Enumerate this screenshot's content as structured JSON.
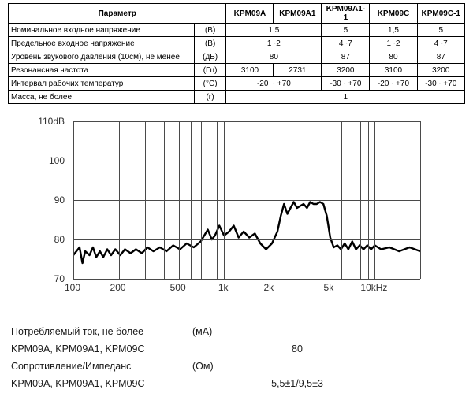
{
  "table": {
    "header": {
      "param": "Параметр",
      "models": [
        "KPM09A",
        "KPM09A1",
        "KPM09A1-1",
        "KPM09C",
        "KPM09C-1"
      ]
    },
    "rows": [
      {
        "param": "Номинальное входное напряжение",
        "unit": "(В)",
        "cells": [
          {
            "span": 2,
            "v": "1,5"
          },
          {
            "span": 1,
            "v": "5"
          },
          {
            "span": 1,
            "v": "1,5"
          },
          {
            "span": 1,
            "v": "5"
          }
        ]
      },
      {
        "param": "Предельное входное напряжение",
        "unit": "(В)",
        "cells": [
          {
            "span": 2,
            "v": "1~2"
          },
          {
            "span": 1,
            "v": "4~7"
          },
          {
            "span": 1,
            "v": "1~2"
          },
          {
            "span": 1,
            "v": "4~7"
          }
        ]
      },
      {
        "param": "Уровень звукового давления (10см), не менее",
        "unit": "(дБ)",
        "cells": [
          {
            "span": 2,
            "v": "80"
          },
          {
            "span": 1,
            "v": "87"
          },
          {
            "span": 1,
            "v": "80"
          },
          {
            "span": 1,
            "v": "87"
          }
        ]
      },
      {
        "param": "Резонансная частота",
        "unit": "(Гц)",
        "cells": [
          {
            "span": 1,
            "v": "3100"
          },
          {
            "span": 1,
            "v": "2731"
          },
          {
            "span": 1,
            "v": "3200"
          },
          {
            "span": 1,
            "v": "3100"
          },
          {
            "span": 1,
            "v": "3200"
          }
        ]
      },
      {
        "param": "Интервал рабочих температур",
        "unit": "(°С)",
        "cells": [
          {
            "span": 2,
            "v": "-20 ~ +70"
          },
          {
            "span": 1,
            "v": "-30~ +70"
          },
          {
            "span": 1,
            "v": "-20~ +70"
          },
          {
            "span": 1,
            "v": "-30~ +70"
          }
        ]
      },
      {
        "param": "Масса, не более",
        "unit": "(г)",
        "cells": [
          {
            "span": 5,
            "v": "1"
          }
        ]
      }
    ]
  },
  "chart": {
    "type": "line-spectrum-log-x",
    "ylim": [
      70,
      110
    ],
    "y_unit": "dB",
    "ylabel_top": "110dB",
    "yticks": [
      70,
      80,
      90,
      100,
      110
    ],
    "ytick_labels": [
      "70",
      "80",
      "90",
      "100",
      "110dB"
    ],
    "x_log_base": 10,
    "xlim": [
      100,
      20000
    ],
    "xticks": [
      100,
      200,
      500,
      1000,
      2000,
      5000,
      10000
    ],
    "xtick_labels": [
      "100",
      "200",
      "500",
      "1k",
      "2k",
      "5k",
      "10kHz"
    ],
    "x_gridlines": [
      100,
      200,
      300,
      400,
      500,
      600,
      700,
      800,
      900,
      1000,
      2000,
      3000,
      4000,
      5000,
      6000,
      7000,
      8000,
      9000,
      10000,
      20000
    ],
    "line_color": "#000000",
    "line_width": 2.4,
    "grid_color": "#4a4a4a",
    "background_color": "#ffffff",
    "label_fontsize": 12,
    "points": [
      [
        100,
        76
      ],
      [
        110,
        78
      ],
      [
        115,
        74
      ],
      [
        120,
        77
      ],
      [
        128,
        76
      ],
      [
        135,
        78
      ],
      [
        142,
        75.5
      ],
      [
        150,
        77
      ],
      [
        158,
        75.5
      ],
      [
        168,
        77.5
      ],
      [
        178,
        76
      ],
      [
        190,
        77.5
      ],
      [
        205,
        76
      ],
      [
        220,
        77.5
      ],
      [
        240,
        76.5
      ],
      [
        260,
        77.5
      ],
      [
        285,
        76.5
      ],
      [
        310,
        78
      ],
      [
        340,
        77
      ],
      [
        375,
        78
      ],
      [
        415,
        77
      ],
      [
        460,
        78.5
      ],
      [
        510,
        77.5
      ],
      [
        565,
        79
      ],
      [
        630,
        78
      ],
      [
        700,
        79.5
      ],
      [
        780,
        82.5
      ],
      [
        830,
        80
      ],
      [
        870,
        81
      ],
      [
        930,
        83.5
      ],
      [
        1000,
        81
      ],
      [
        1080,
        82
      ],
      [
        1160,
        83.5
      ],
      [
        1250,
        80.5
      ],
      [
        1350,
        82
      ],
      [
        1470,
        80.5
      ],
      [
        1600,
        81.5
      ],
      [
        1740,
        79
      ],
      [
        1900,
        77.5
      ],
      [
        2080,
        79
      ],
      [
        2260,
        82
      ],
      [
        2380,
        86
      ],
      [
        2500,
        89
      ],
      [
        2630,
        86.5
      ],
      [
        2760,
        88
      ],
      [
        2900,
        89.5
      ],
      [
        3050,
        88
      ],
      [
        3200,
        88.5
      ],
      [
        3370,
        89
      ],
      [
        3550,
        88
      ],
      [
        3730,
        89.5
      ],
      [
        3920,
        89
      ],
      [
        4120,
        89
      ],
      [
        4330,
        89.5
      ],
      [
        4560,
        89
      ],
      [
        4800,
        86
      ],
      [
        5060,
        80.5
      ],
      [
        5340,
        78
      ],
      [
        5640,
        78.5
      ],
      [
        5970,
        77.5
      ],
      [
        6310,
        79
      ],
      [
        6680,
        77.5
      ],
      [
        7080,
        79.5
      ],
      [
        7500,
        77.5
      ],
      [
        7940,
        78.5
      ],
      [
        8410,
        77.5
      ],
      [
        8910,
        78.5
      ],
      [
        9440,
        77.5
      ],
      [
        10000,
        78.5
      ],
      [
        11000,
        77.5
      ],
      [
        12500,
        78
      ],
      [
        14500,
        77
      ],
      [
        17000,
        78
      ],
      [
        20000,
        77
      ]
    ]
  },
  "footer": {
    "r1_label": "Потребляемый ток, не более",
    "r1_unit": "(мА)",
    "r2_label": "KPM09A, KPM09A1, KPM09C",
    "r2_value": "80",
    "r3_label": "Сопротивление/Импеданс",
    "r3_unit": "(Ом)",
    "r4_label": "KPM09A, KPM09A1, KPM09C",
    "r4_value": "5,5±1/9,5±3"
  }
}
